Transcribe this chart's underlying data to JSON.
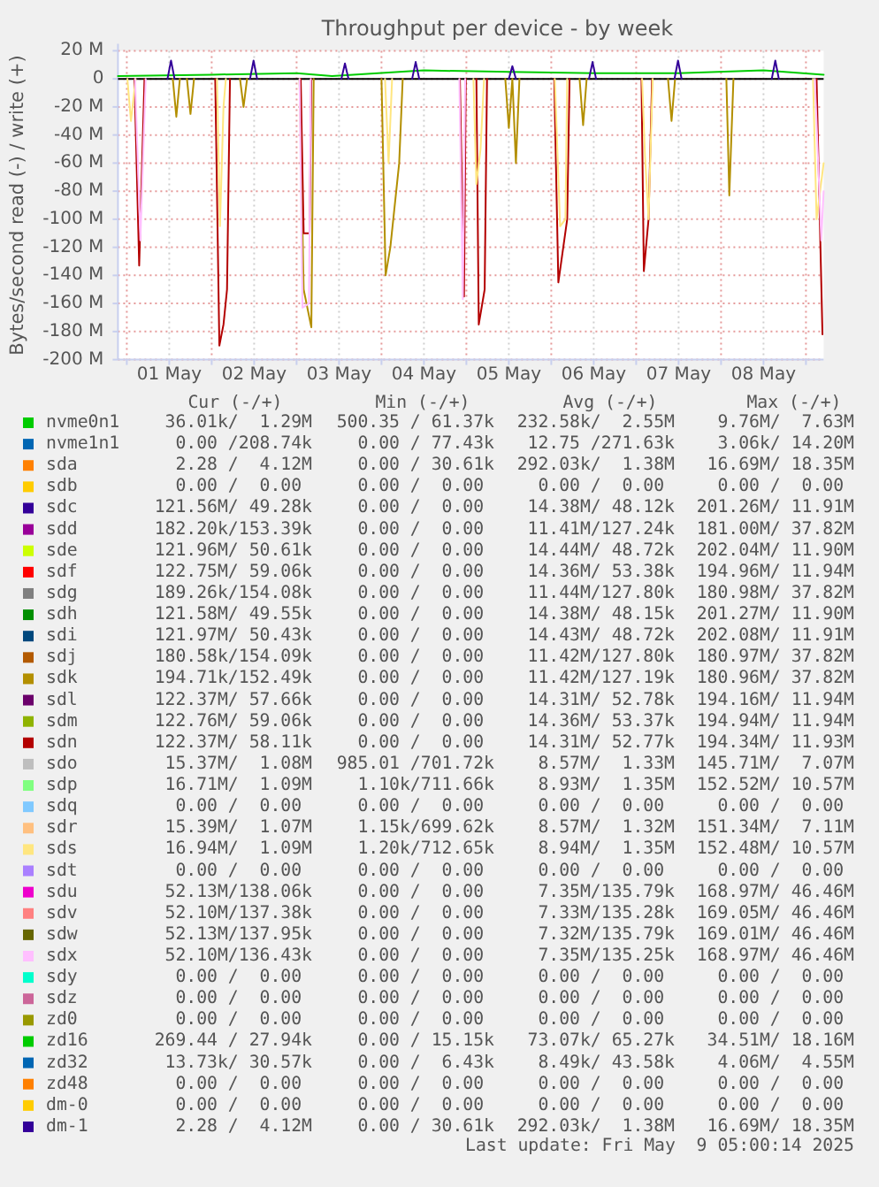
{
  "chart_data": {
    "type": "line",
    "title": "Throughput per device - by week",
    "ylabel": "Bytes/second read (-) / write (+)",
    "xlim": [
      "2025-04-30T21:30",
      "2025-05-09T05:00"
    ],
    "xticks": [
      {
        "value": "2025-05-01T00:00",
        "label": null
      },
      {
        "value": "2025-05-01T12:00",
        "label": "01 May"
      },
      {
        "value": "2025-05-02T00:00",
        "label": null
      },
      {
        "value": "2025-05-02T12:00",
        "label": "02 May"
      },
      {
        "value": "2025-05-03T00:00",
        "label": null
      },
      {
        "value": "2025-05-03T12:00",
        "label": "03 May"
      },
      {
        "value": "2025-05-04T00:00",
        "label": null
      },
      {
        "value": "2025-05-04T12:00",
        "label": "04 May"
      },
      {
        "value": "2025-05-05T00:00",
        "label": null
      },
      {
        "value": "2025-05-05T12:00",
        "label": "05 May"
      },
      {
        "value": "2025-05-06T00:00",
        "label": null
      },
      {
        "value": "2025-05-06T12:00",
        "label": "06 May"
      },
      {
        "value": "2025-05-07T00:00",
        "label": null
      },
      {
        "value": "2025-05-07T12:00",
        "label": "07 May"
      },
      {
        "value": "2025-05-08T00:00",
        "label": null
      },
      {
        "value": "2025-05-08T12:00",
        "label": "08 May"
      },
      {
        "value": "2025-05-09T00:00",
        "label": null
      }
    ],
    "ylim": [
      -200,
      20
    ],
    "yticks": [
      {
        "value": 20,
        "label": "20 M"
      },
      0,
      {
        "value": -20,
        "label": "-20 M"
      },
      {
        "value": -40,
        "label": "-40 M"
      },
      {
        "value": -60,
        "label": "-60 M"
      },
      {
        "value": -80,
        "label": "-80 M"
      },
      {
        "value": -100,
        "label": "-100 M"
      },
      {
        "value": -120,
        "label": "-120 M"
      },
      {
        "value": -140,
        "label": "-140 M"
      },
      {
        "value": -160,
        "label": "-160 M"
      },
      {
        "value": -180,
        "label": "-180 M"
      },
      {
        "value": -200,
        "label": "-200 M"
      }
    ],
    "grid": true,
    "legend": "bottom",
    "line_style": "solid",
    "ref_lines": [
      {
        "axis": "y",
        "value": 0,
        "color": "#000000"
      }
    ],
    "series": [
      {
        "name": "nvme0n1",
        "color": "#00cc00",
        "x": [
          "2025-04-30T21:30",
          "2025-05-02T00:00",
          "2025-05-03T00:00",
          "2025-05-03T10:00",
          "2025-05-04T12:00",
          "2025-05-05T12:00",
          "2025-05-06T12:00",
          "2025-05-07T12:00",
          "2025-05-08T12:00",
          "2025-05-09T05:00"
        ],
        "values": [
          2,
          3,
          4,
          2,
          6,
          5,
          4,
          4,
          6,
          3
        ]
      },
      {
        "name": "nvme1n1",
        "color": "#0066b3"
      },
      {
        "name": "sda",
        "color": "#ff8000"
      },
      {
        "name": "sdb",
        "color": "#ffcc00"
      },
      {
        "name": "sdc",
        "color": "#330099"
      },
      {
        "name": "sdd",
        "color": "#990099"
      },
      {
        "name": "sde",
        "color": "#ccff00"
      },
      {
        "name": "sdf",
        "color": "#ff0000"
      },
      {
        "name": "sdg",
        "color": "#808080"
      },
      {
        "name": "sdh",
        "color": "#008f00"
      },
      {
        "name": "sdi",
        "color": "#00487d"
      },
      {
        "name": "sdj",
        "color": "#b35a00"
      },
      {
        "name": "sdk",
        "color": "#b38f00"
      },
      {
        "color": "#b38f00",
        "x": [
          "2025-05-01T13:00",
          "2025-05-01T14:00",
          "2025-05-01T15:00",
          "2025-05-01T16:00",
          "2025-05-01T17:00",
          "2025-05-01T18:00",
          "2025-05-01T19:00",
          "2025-05-02T00:00",
          "2025-05-02T08:00",
          "2025-05-02T09:00",
          "2025-05-02T10:00",
          "2025-05-02T18:00",
          "2025-05-03T00:50",
          "2025-05-03T02:00",
          "2025-05-03T04:10",
          "2025-05-03T04:50",
          "2025-05-03T12:00",
          "2025-05-04T00:00",
          "2025-05-04T01:10",
          "2025-05-04T02:30",
          "2025-05-04T05:00",
          "2025-05-04T06:00",
          "2025-05-04T12:00",
          "2025-05-05T11:00",
          "2025-05-05T12:00",
          "2025-05-05T13:00",
          "2025-05-05T14:00",
          "2025-05-05T15:00",
          "2025-05-05T20:00",
          "2025-05-06T08:00",
          "2025-05-06T09:00",
          "2025-05-06T10:00",
          "2025-05-06T20:00",
          "2025-05-07T09:00",
          "2025-05-07T10:00",
          "2025-05-07T11:00",
          "2025-05-07T20:00",
          "2025-05-08T01:30",
          "2025-05-08T02:20",
          "2025-05-08T03:30"
        ],
        "values": [
          0,
          -27,
          0,
          null,
          0,
          -25,
          0,
          null,
          0,
          -20,
          0,
          null,
          0,
          -150,
          -177,
          0,
          null,
          0,
          -140,
          -120,
          -60,
          0,
          null,
          0,
          -35,
          0,
          -60,
          0,
          null,
          0,
          -33,
          0,
          null,
          0,
          -30,
          0,
          null,
          0,
          -83,
          0
        ]
      },
      {
        "name": "sdl",
        "color": "#6b006b"
      },
      {
        "name": "sdm",
        "color": "#8fb300"
      },
      {
        "name": "sdn",
        "color": "#b30000"
      },
      {
        "color": "#b30000",
        "x": [
          "2025-05-01T02:10",
          "2025-05-01T03:30",
          "2025-05-01T05:00",
          "2025-05-01T12:00",
          "2025-05-02T01:00",
          "2025-05-02T02:10",
          "2025-05-02T03:20",
          "2025-05-02T04:20",
          "2025-05-02T05:10",
          "2025-05-02T12:00",
          "2025-05-03T01:10",
          "2025-05-03T02:00",
          "2025-05-03T03:40",
          "2025-05-03T04:10",
          "2025-05-03T12:00",
          "2025-05-04T22:10",
          "2025-05-04T23:20",
          "2025-05-04T23:50",
          "2025-05-05T01:00",
          "2025-05-05T02:50",
          "2025-05-05T03:30",
          "2025-05-05T05:10",
          "2025-05-05T05:50",
          "2025-05-05T12:00",
          "2025-05-06T00:50",
          "2025-05-06T02:00",
          "2025-05-06T04:30",
          "2025-05-06T05:10",
          "2025-05-06T12:00",
          "2025-05-07T01:30",
          "2025-05-07T02:10",
          "2025-05-07T03:30",
          "2025-05-07T04:30",
          "2025-05-07T12:00",
          "2025-05-09T03:00",
          "2025-05-09T04:40"
        ],
        "values": [
          0,
          -133,
          0,
          null,
          0,
          -190,
          -175,
          -150,
          0,
          null,
          0,
          -110,
          -110,
          0,
          null,
          0,
          -155,
          0,
          null,
          0,
          -175,
          -150,
          0,
          null,
          0,
          -145,
          -100,
          0,
          null,
          0,
          -137,
          -100,
          0,
          null,
          0,
          -182
        ]
      },
      {
        "name": "sdo",
        "color": "#bebebe"
      },
      {
        "name": "sdp",
        "color": "#80ff80"
      },
      {
        "name": "sdq",
        "color": "#80c9ff"
      },
      {
        "name": "sdr",
        "color": "#ffc080"
      },
      {
        "name": "sds",
        "color": "#ffe680"
      },
      {
        "color": "#ffe680",
        "x": [
          "2025-05-01T00:10",
          "2025-05-01T01:10",
          "2025-05-01T02:30",
          "2025-05-01T12:00",
          "2025-05-02T01:30",
          "2025-05-02T02:20",
          "2025-05-02T03:20",
          "2025-05-02T04:00",
          "2025-05-02T12:00",
          "2025-05-04T01:00",
          "2025-05-04T02:00",
          "2025-05-04T03:00",
          "2025-05-04T12:00",
          "2025-05-05T02:00",
          "2025-05-05T02:50",
          "2025-05-05T04:00",
          "2025-05-05T05:00",
          "2025-05-05T12:00",
          "2025-05-06T01:00",
          "2025-05-06T02:30",
          "2025-05-06T04:00",
          "2025-05-06T04:30",
          "2025-05-06T12:00",
          "2025-05-07T01:40",
          "2025-05-07T02:30",
          "2025-05-07T03:30",
          "2025-05-07T04:40",
          "2025-05-07T12:00",
          "2025-05-09T02:00",
          "2025-05-09T03:00",
          "2025-05-09T05:00"
        ],
        "values": [
          0,
          -30,
          0,
          null,
          0,
          -105,
          -20,
          0,
          null,
          0,
          -60,
          0,
          null,
          0,
          -75,
          -50,
          0,
          null,
          0,
          -105,
          -100,
          0,
          null,
          0,
          -55,
          -100,
          0,
          null,
          0,
          -100,
          -60
        ]
      },
      {
        "name": "sdt",
        "color": "#aa80ff"
      },
      {
        "name": "sdu",
        "color": "#ee00cc"
      },
      {
        "name": "sdv",
        "color": "#ff8080"
      },
      {
        "name": "sdw",
        "color": "#666600"
      },
      {
        "name": "sdx",
        "color": "#ffbfff"
      },
      {
        "color": "#ffbfff",
        "x": [
          "2025-05-01T02:20",
          "2025-05-01T03:50",
          "2025-05-01T05:20",
          "2025-05-01T12:00",
          "2025-05-03T00:50",
          "2025-05-03T01:40",
          "2025-05-03T03:30",
          "2025-05-03T04:00",
          "2025-05-03T12:00",
          "2025-05-04T22:00",
          "2025-05-04T23:00",
          "2025-05-04T23:40",
          "2025-05-05T12:00",
          "2025-05-09T02:30",
          "2025-05-09T04:20",
          "2025-05-09T05:00"
        ],
        "values": [
          0,
          -115,
          0,
          null,
          0,
          -163,
          -160,
          0,
          null,
          0,
          -157,
          0,
          null,
          0,
          -115,
          -80
        ]
      },
      {
        "name": "sdy",
        "color": "#00ffcc"
      },
      {
        "name": "sdz",
        "color": "#cc6699"
      },
      {
        "name": "zd0",
        "color": "#999900"
      },
      {
        "name": "zd16",
        "color": "#00cc00"
      },
      {
        "name": "zd32",
        "color": "#0066b3"
      },
      {
        "name": "zd48",
        "color": "#ff8000"
      },
      {
        "name": "dm-0",
        "color": "#ffcc00"
      },
      {
        "name": "dm-1",
        "color": "#330099",
        "x": [
          "2025-05-01T11:30",
          "2025-05-01T12:30",
          "2025-05-01T13:30",
          "2025-05-02T00:00",
          "2025-05-02T10:50",
          "2025-05-02T11:50",
          "2025-05-02T12:50",
          "2025-05-03T00:00",
          "2025-05-03T12:40",
          "2025-05-03T13:40",
          "2025-05-03T14:40",
          "2025-05-04T00:00",
          "2025-05-04T08:40",
          "2025-05-04T09:40",
          "2025-05-04T10:40",
          "2025-05-05T00:00",
          "2025-05-05T12:00",
          "2025-05-05T13:00",
          "2025-05-05T14:00",
          "2025-05-06T00:00",
          "2025-05-06T10:40",
          "2025-05-06T11:40",
          "2025-05-06T12:40",
          "2025-05-07T00:00",
          "2025-05-07T10:50",
          "2025-05-07T11:50",
          "2025-05-07T12:50",
          "2025-05-08T00:00",
          "2025-05-08T14:20",
          "2025-05-08T15:20",
          "2025-05-08T16:20"
        ],
        "values": [
          0,
          13,
          0,
          null,
          0,
          13,
          0,
          null,
          0,
          11,
          0,
          null,
          0,
          12,
          0,
          null,
          0,
          9,
          0,
          null,
          0,
          12,
          0,
          null,
          0,
          13,
          0,
          null,
          0,
          13,
          0
        ]
      }
    ],
    "annotations": [
      "Cur (-/+)",
      "Min (-/+)",
      "Avg (-/+)",
      "Max (-/+)",
      "36.01k/  1.29M",
      "500.35 / 61.37k",
      "232.58k/  2.55M",
      "9.76M/  7.63M",
      "0.00 /208.74k",
      "0.00 / 77.43k",
      "12.75 /271.63k",
      "3.06k/ 14.20M",
      "2.28 /  4.12M",
      "0.00 / 30.61k",
      "292.03k/  1.38M",
      "16.69M/ 18.35M",
      "0.00 /  0.00",
      "0.00 /  0.00",
      "0.00 /  0.00",
      "0.00 /  0.00",
      "121.56M/ 49.28k",
      "0.00 /  0.00",
      "14.38M/ 48.12k",
      "201.26M/ 11.91M",
      "182.20k/153.39k",
      "0.00 /  0.00",
      "11.41M/127.24k",
      "181.00M/ 37.82M",
      "121.96M/ 50.61k",
      "0.00 /  0.00",
      "14.44M/ 48.72k",
      "202.04M/ 11.90M",
      "122.75M/ 59.06k",
      "0.00 /  0.00",
      "14.36M/ 53.38k",
      "194.96M/ 11.94M",
      "189.26k/154.08k",
      "0.00 /  0.00",
      "11.44M/127.80k",
      "180.98M/ 37.82M",
      "121.58M/ 49.55k",
      "0.00 /  0.00",
      "14.38M/ 48.15k",
      "201.27M/ 11.90M",
      "121.97M/ 50.43k",
      "0.00 /  0.00",
      "14.43M/ 48.72k",
      "202.08M/ 11.91M",
      "180.58k/154.09k",
      "0.00 /  0.00",
      "11.42M/127.80k",
      "180.97M/ 37.82M",
      "194.71k/152.49k",
      "0.00 /  0.00",
      "11.42M/127.19k",
      "180.96M/ 37.82M",
      "122.37M/ 57.66k",
      "0.00 /  0.00",
      "14.31M/ 52.78k",
      "194.16M/ 11.94M",
      "122.76M/ 59.06k",
      "0.00 /  0.00",
      "14.36M/ 53.37k",
      "194.94M/ 11.94M",
      "122.37M/ 58.11k",
      "0.00 /  0.00",
      "14.31M/ 52.77k",
      "194.34M/ 11.93M",
      "15.37M/  1.08M",
      "985.01 /701.72k",
      "8.57M/  1.33M",
      "145.71M/  7.07M",
      "16.71M/  1.09M",
      "1.10k/711.66k",
      "8.93M/  1.35M",
      "152.52M/ 10.57M",
      "0.00 /  0.00",
      "0.00 /  0.00",
      "0.00 /  0.00",
      "0.00 /  0.00",
      "15.39M/  1.07M",
      "1.15k/699.62k",
      "8.57M/  1.32M",
      "151.34M/  7.11M",
      "16.94M/  1.09M",
      "1.20k/712.65k",
      "8.94M/  1.35M",
      "152.48M/ 10.57M",
      "0.00 /  0.00",
      "0.00 /  0.00",
      "0.00 /  0.00",
      "0.00 /  0.00",
      "52.13M/138.06k",
      "0.00 /  0.00",
      "7.35M/135.79k",
      "168.97M/ 46.46M",
      "52.10M/137.38k",
      "0.00 /  0.00",
      "7.33M/135.28k",
      "169.05M/ 46.46M",
      "52.13M/137.95k",
      "0.00 /  0.00",
      "7.32M/135.79k",
      "169.01M/ 46.46M",
      "52.10M/136.43k",
      "0.00 /  0.00",
      "7.35M/135.25k",
      "168.97M/ 46.46M",
      "0.00 /  0.00",
      "0.00 /  0.00",
      "0.00 /  0.00",
      "0.00 /  0.00",
      "0.00 /  0.00",
      "0.00 /  0.00",
      "0.00 /  0.00",
      "0.00 /  0.00",
      "0.00 /  0.00",
      "0.00 /  0.00",
      "0.00 /  0.00",
      "0.00 /  0.00",
      "269.44 / 27.94k",
      "0.00 / 15.15k",
      "73.07k/ 65.27k",
      "34.51M/ 18.16M",
      "13.73k/ 30.57k",
      "0.00 /  6.43k",
      "8.49k/ 43.58k",
      "4.06M/  4.55M",
      "0.00 /  0.00",
      "0.00 /  0.00",
      "0.00 /  0.00",
      "0.00 /  0.00",
      "0.00 /  0.00",
      "0.00 /  0.00",
      "0.00 /  0.00",
      "0.00 /  0.00",
      "2.28 /  4.12M",
      "0.00 / 30.61k",
      "292.03k/  1.38M",
      "16.69M/ 18.35M",
      "Last update: Fri May  9 05:00:14 2025"
    ]
  }
}
